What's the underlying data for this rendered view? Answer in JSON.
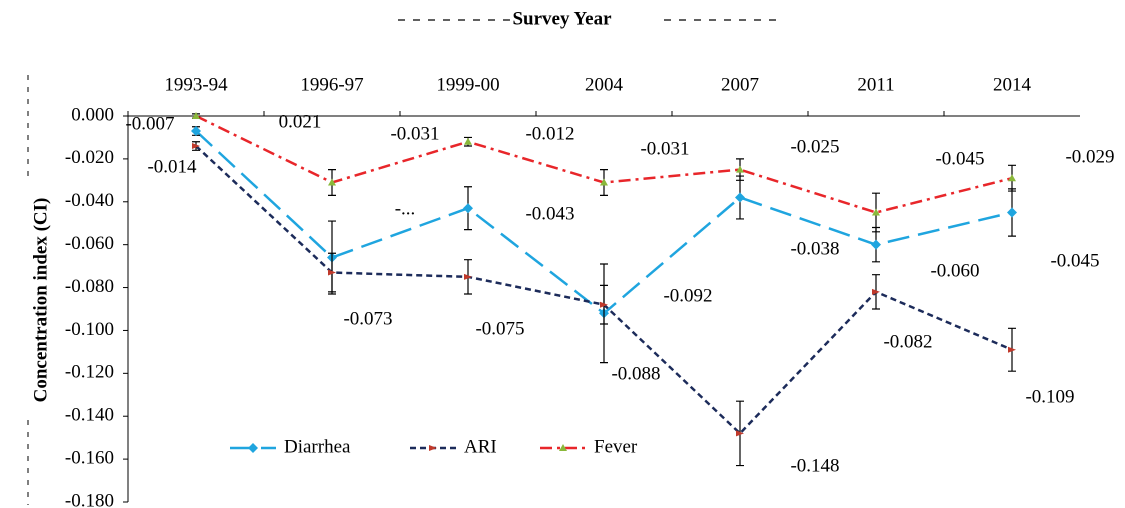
{
  "chart_data": {
    "type": "line",
    "x_title": "Survey Year",
    "y_title": "Concentration   index (CI)",
    "categories": [
      "1993-94",
      "1996-97",
      "1999-00",
      "2004",
      "2007",
      "2011",
      "2014"
    ],
    "ylim": [
      -0.18,
      0
    ],
    "yticks": [
      {
        "value": 0,
        "label": "0.000"
      },
      {
        "value": -0.02,
        "label": "-0.020"
      },
      {
        "value": -0.04,
        "label": "-0.040"
      },
      {
        "value": -0.06,
        "label": "-0.060"
      },
      {
        "value": -0.08,
        "label": "-0.080"
      },
      {
        "value": -0.1,
        "label": "-0.100"
      },
      {
        "value": -0.12,
        "label": "-0.120"
      },
      {
        "value": -0.14,
        "label": "-0.140"
      },
      {
        "value": -0.16,
        "label": "-0.160"
      },
      {
        "value": -0.18,
        "label": "-0.180"
      }
    ],
    "series": [
      {
        "name": "Diarrhea",
        "color": "#1fa5df",
        "values": [
          -0.007,
          -0.066,
          -0.043,
          -0.092,
          -0.038,
          -0.06,
          -0.045
        ],
        "errors": [
          0.002,
          0.017,
          0.01,
          0.023,
          0.01,
          0.008,
          0.011
        ],
        "value_labels": [
          "-0.007",
          null,
          "-0.043",
          "-0.092",
          "-0.038",
          "-0.060",
          "-0.045"
        ]
      },
      {
        "name": "ARI",
        "color": "#1c2b5a",
        "values": [
          -0.014,
          -0.073,
          -0.075,
          -0.088,
          -0.148,
          -0.082,
          -0.109
        ],
        "errors": [
          0.002,
          0.009,
          0.008,
          0.009,
          0.015,
          0.008,
          0.01
        ],
        "value_labels": [
          "-0.014",
          "-0.073",
          "-0.075",
          "-0.088",
          "-0.148",
          "-0.082",
          "-0.109"
        ]
      },
      {
        "name": "Fever",
        "color": "#e8262a",
        "values": [
          0,
          -0.031,
          -0.012,
          -0.031,
          -0.025,
          -0.045,
          -0.029
        ],
        "errors": [
          0.001,
          0.006,
          0.002,
          0.006,
          0.005,
          0.009,
          0.006
        ],
        "value_labels": [
          null,
          "-0.031",
          "-0.012",
          "-0.031",
          "-0.025",
          "-0.045",
          "-0.029"
        ]
      }
    ],
    "annotations": [
      "0.021",
      "-..."
    ]
  }
}
